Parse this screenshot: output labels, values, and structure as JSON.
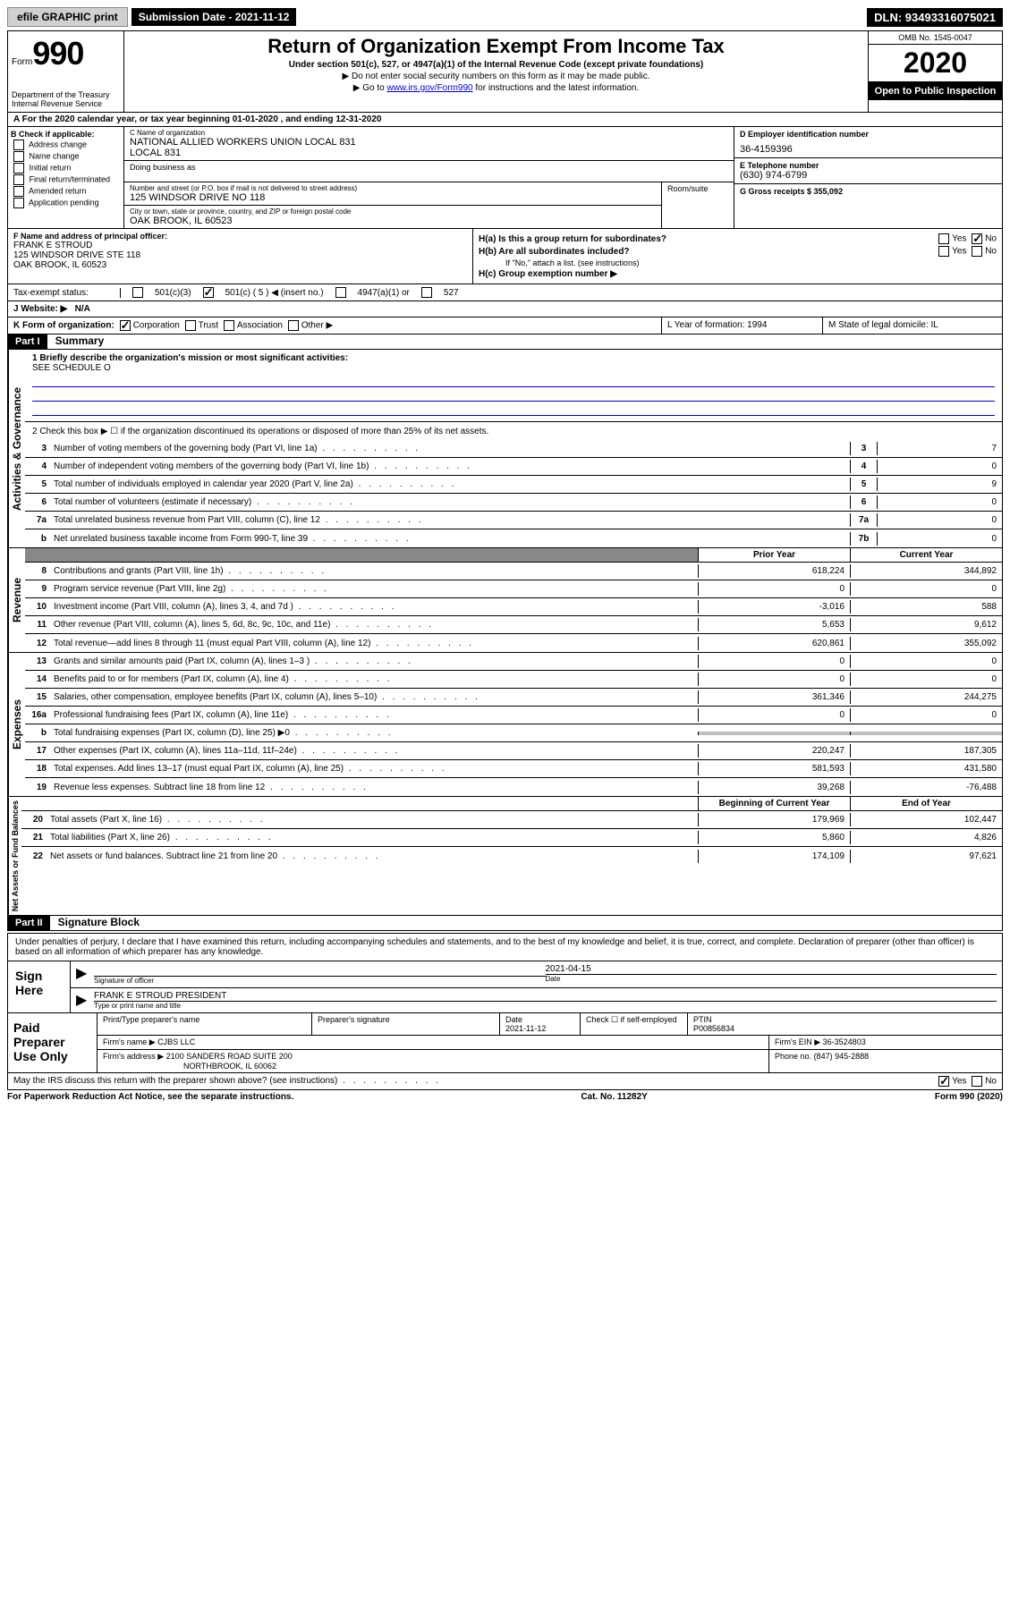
{
  "topbar": {
    "efile": "efile GRAPHIC print",
    "submission_label": "Submission Date - 2021-11-12",
    "dln": "DLN: 93493316075021"
  },
  "header": {
    "form_prefix": "Form",
    "form_number": "990",
    "dept": "Department of the Treasury\nInternal Revenue Service",
    "title": "Return of Organization Exempt From Income Tax",
    "subtitle": "Under section 501(c), 527, or 4947(a)(1) of the Internal Revenue Code (except private foundations)",
    "instr1": "▶ Do not enter social security numbers on this form as it may be made public.",
    "instr2_pre": "▶ Go to ",
    "instr2_link": "www.irs.gov/Form990",
    "instr2_post": " for instructions and the latest information.",
    "omb": "OMB No. 1545-0047",
    "year": "2020",
    "open_public": "Open to Public Inspection"
  },
  "tax_year": "A For the 2020 calendar year, or tax year beginning 01-01-2020  , and ending 12-31-2020",
  "box_b": {
    "header": "B Check if applicable:",
    "items": [
      "Address change",
      "Name change",
      "Initial return",
      "Final return/terminated",
      "Amended return",
      "Application pending"
    ]
  },
  "box_c": {
    "name_label": "C Name of organization",
    "name": "NATIONAL ALLIED WORKERS UNION LOCAL 831",
    "name2": "LOCAL 831",
    "dba_label": "Doing business as",
    "addr_label": "Number and street (or P.O. box if mail is not delivered to street address)",
    "addr": "125 WINDSOR DRIVE NO 118",
    "room_label": "Room/suite",
    "city_label": "City or town, state or province, country, and ZIP or foreign postal code",
    "city": "OAK BROOK, IL  60523"
  },
  "box_d": {
    "label": "D Employer identification number",
    "val": "36-4159396"
  },
  "box_e": {
    "label": "E Telephone number",
    "val": "(630) 974-6799"
  },
  "box_g": {
    "label": "G Gross receipts $ 355,092"
  },
  "box_f": {
    "label": "F Name and address of principal officer:",
    "name": "FRANK E STROUD",
    "addr1": "125 WINDSOR DRIVE STE 118",
    "addr2": "OAK BROOK, IL  60523"
  },
  "box_h": {
    "ha": "H(a)  Is this a group return for subordinates?",
    "hb": "H(b)  Are all subordinates included?",
    "hb_note": "If \"No,\" attach a list. (see instructions)",
    "hc": "H(c)  Group exemption number ▶"
  },
  "tax_exempt": {
    "label": "Tax-exempt status:",
    "opts": [
      "501(c)(3)",
      "501(c) ( 5 ) ◀ (insert no.)",
      "4947(a)(1) or",
      "527"
    ]
  },
  "website": {
    "label": "J  Website: ▶",
    "val": "N/A"
  },
  "box_k": {
    "label": "K Form of organization:",
    "opts": [
      "Corporation",
      "Trust",
      "Association",
      "Other ▶"
    ]
  },
  "box_l": {
    "label": "L Year of formation: 1994"
  },
  "box_m": {
    "label": "M State of legal domicile: IL"
  },
  "part1": {
    "num": "Part I",
    "title": "Summary"
  },
  "summary": {
    "mission_label": "1  Briefly describe the organization's mission or most significant activities:",
    "mission": "SEE SCHEDULE O",
    "line2": "2   Check this box ▶ ☐  if the organization discontinued its operations or disposed of more than 25% of its net assets.",
    "sections": {
      "governance": "Activities & Governance",
      "revenue": "Revenue",
      "expenses": "Expenses",
      "netassets": "Net Assets or Fund Balances"
    },
    "gov_rows": [
      {
        "n": "3",
        "d": "Number of voting members of the governing body (Part VI, line 1a)",
        "box": "3",
        "v": "7"
      },
      {
        "n": "4",
        "d": "Number of independent voting members of the governing body (Part VI, line 1b)",
        "box": "4",
        "v": "0"
      },
      {
        "n": "5",
        "d": "Total number of individuals employed in calendar year 2020 (Part V, line 2a)",
        "box": "5",
        "v": "9"
      },
      {
        "n": "6",
        "d": "Total number of volunteers (estimate if necessary)",
        "box": "6",
        "v": "0"
      },
      {
        "n": "7a",
        "d": "Total unrelated business revenue from Part VIII, column (C), line 12",
        "box": "7a",
        "v": "0"
      },
      {
        "n": "b",
        "d": "Net unrelated business taxable income from Form 990-T, line 39",
        "box": "7b",
        "v": "0"
      }
    ],
    "col_hdrs": {
      "prior": "Prior Year",
      "current": "Current Year"
    },
    "rev_rows": [
      {
        "n": "8",
        "d": "Contributions and grants (Part VIII, line 1h)",
        "p": "618,224",
        "c": "344,892"
      },
      {
        "n": "9",
        "d": "Program service revenue (Part VIII, line 2g)",
        "p": "0",
        "c": "0"
      },
      {
        "n": "10",
        "d": "Investment income (Part VIII, column (A), lines 3, 4, and 7d )",
        "p": "-3,016",
        "c": "588"
      },
      {
        "n": "11",
        "d": "Other revenue (Part VIII, column (A), lines 5, 6d, 8c, 9c, 10c, and 11e)",
        "p": "5,653",
        "c": "9,612"
      },
      {
        "n": "12",
        "d": "Total revenue—add lines 8 through 11 (must equal Part VIII, column (A), line 12)",
        "p": "620,861",
        "c": "355,092"
      }
    ],
    "exp_rows": [
      {
        "n": "13",
        "d": "Grants and similar amounts paid (Part IX, column (A), lines 1–3 )",
        "p": "0",
        "c": "0"
      },
      {
        "n": "14",
        "d": "Benefits paid to or for members (Part IX, column (A), line 4)",
        "p": "0",
        "c": "0"
      },
      {
        "n": "15",
        "d": "Salaries, other compensation, employee benefits (Part IX, column (A), lines 5–10)",
        "p": "361,346",
        "c": "244,275"
      },
      {
        "n": "16a",
        "d": "Professional fundraising fees (Part IX, column (A), line 11e)",
        "p": "0",
        "c": "0"
      },
      {
        "n": "b",
        "d": "Total fundraising expenses (Part IX, column (D), line 25) ▶0",
        "p": "shaded",
        "c": "shaded"
      },
      {
        "n": "17",
        "d": "Other expenses (Part IX, column (A), lines 11a–11d, 11f–24e)",
        "p": "220,247",
        "c": "187,305"
      },
      {
        "n": "18",
        "d": "Total expenses. Add lines 13–17 (must equal Part IX, column (A), line 25)",
        "p": "581,593",
        "c": "431,580"
      },
      {
        "n": "19",
        "d": "Revenue less expenses. Subtract line 18 from line 12",
        "p": "39,268",
        "c": "-76,488"
      }
    ],
    "na_hdr": {
      "begin": "Beginning of Current Year",
      "end": "End of Year"
    },
    "na_rows": [
      {
        "n": "20",
        "d": "Total assets (Part X, line 16)",
        "p": "179,969",
        "c": "102,447"
      },
      {
        "n": "21",
        "d": "Total liabilities (Part X, line 26)",
        "p": "5,860",
        "c": "4,826"
      },
      {
        "n": "22",
        "d": "Net assets or fund balances. Subtract line 21 from line 20",
        "p": "174,109",
        "c": "97,621"
      }
    ]
  },
  "part2": {
    "num": "Part II",
    "title": "Signature Block"
  },
  "sig": {
    "text": "Under penalties of perjury, I declare that I have examined this return, including accompanying schedules and statements, and to the best of my knowledge and belief, it is true, correct, and complete. Declaration of preparer (other than officer) is based on all information of which preparer has any knowledge.",
    "sign_here": "Sign Here",
    "sig_officer": "Signature of officer",
    "date_label": "Date",
    "date": "2021-04-15",
    "name": "FRANK E STROUD  PRESIDENT",
    "name_label": "Type or print name and title"
  },
  "prep": {
    "label": "Paid Preparer Use Only",
    "hdr": [
      "Print/Type preparer's name",
      "Preparer's signature",
      "Date",
      "",
      "PTIN"
    ],
    "date": "2021-11-12",
    "self_emp": "Check ☐ if self-employed",
    "ptin": "P00856834",
    "firm_name_label": "Firm's name  ▶",
    "firm_name": "CJBS LLC",
    "firm_ein_label": "Firm's EIN ▶",
    "firm_ein": "36-3524803",
    "firm_addr_label": "Firm's address ▶",
    "firm_addr": "2100 SANDERS ROAD SUITE 200",
    "firm_city": "NORTHBROOK, IL  60062",
    "phone_label": "Phone no.",
    "phone": "(847) 945-2888"
  },
  "discuss": "May the IRS discuss this return with the preparer shown above? (see instructions)",
  "footer": {
    "left": "For Paperwork Reduction Act Notice, see the separate instructions.",
    "mid": "Cat. No. 11282Y",
    "right": "Form 990 (2020)"
  }
}
